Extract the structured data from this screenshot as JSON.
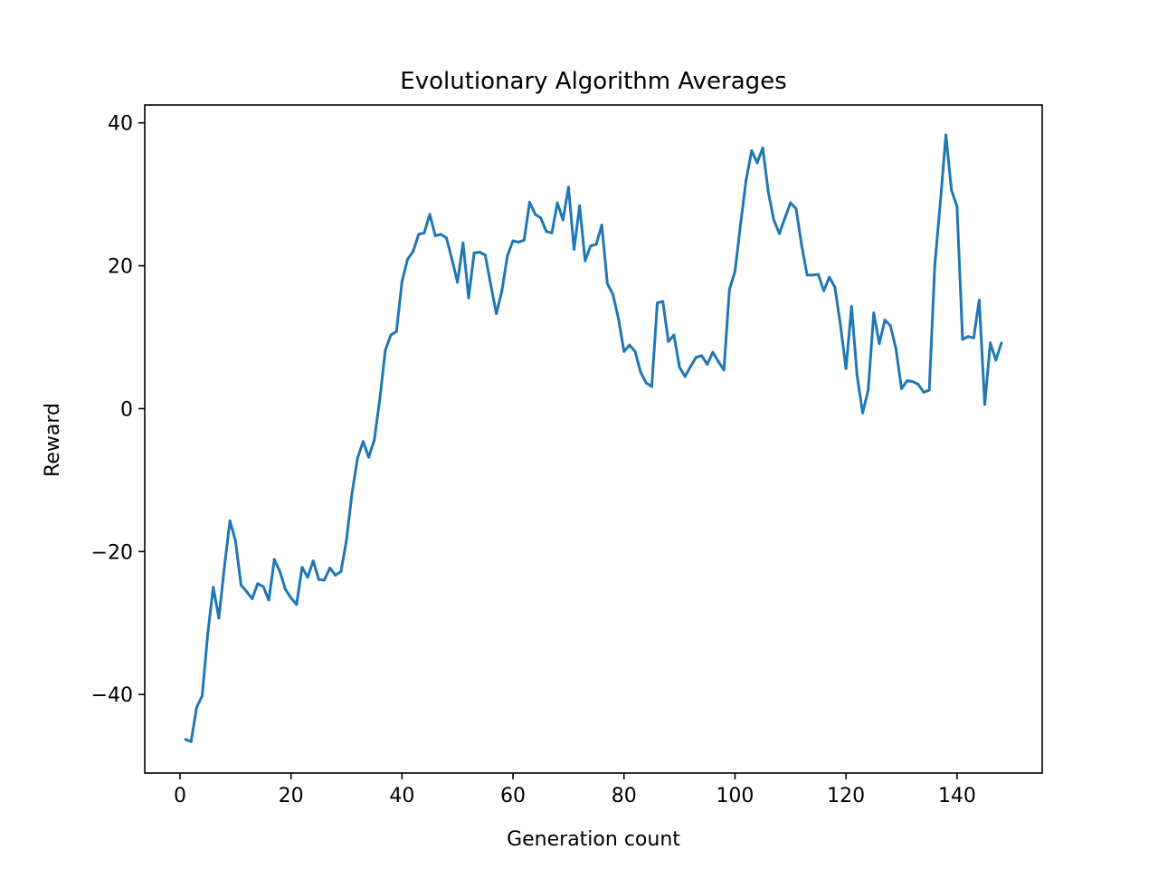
{
  "chart_data": {
    "type": "line",
    "title": "Evolutionary Algorithm Averages",
    "xlabel": "Generation count",
    "ylabel": "Reward",
    "xlim": [
      -6.35,
      155.35
    ],
    "ylim": [
      -51,
      42.5
    ],
    "xticks": [
      0,
      20,
      40,
      60,
      80,
      100,
      120,
      140
    ],
    "yticks": [
      -40,
      -20,
      0,
      20,
      40
    ],
    "xtick_labels": [
      "0",
      "20",
      "40",
      "60",
      "80",
      "100",
      "120",
      "140"
    ],
    "ytick_labels": [
      "−40",
      "−20",
      "0",
      "20",
      "40"
    ],
    "grid": false,
    "color": "#1f77b4",
    "series": [
      {
        "x": [
          1,
          2,
          3,
          4,
          5,
          6,
          7,
          8,
          9,
          10,
          11,
          12,
          13,
          14,
          15,
          16,
          17,
          18,
          19,
          20,
          21,
          22,
          23,
          24,
          25,
          26,
          27,
          28,
          29,
          30,
          31,
          32,
          33,
          34,
          35,
          36,
          37,
          38,
          39,
          40,
          41,
          42,
          43,
          44,
          45,
          46,
          47,
          48,
          49,
          50,
          51,
          52,
          53,
          54,
          55,
          56,
          57,
          58,
          59,
          60,
          61,
          62,
          63,
          64,
          65,
          66,
          67,
          68,
          69,
          70,
          71,
          72,
          73,
          74,
          75,
          76,
          77,
          78,
          79,
          80,
          81,
          82,
          83,
          84,
          85,
          86,
          87,
          88,
          89,
          90,
          91,
          92,
          93,
          94,
          95,
          96,
          97,
          98,
          99,
          100,
          101,
          102,
          103,
          104,
          105,
          106,
          107,
          108,
          109,
          110,
          111,
          112,
          113,
          114,
          115,
          116,
          117,
          118,
          119,
          120,
          121,
          122,
          123,
          124,
          125,
          126,
          127,
          128,
          129,
          130,
          131,
          132,
          133,
          134,
          135,
          136,
          137,
          138,
          139,
          140,
          141,
          142,
          143,
          144,
          145,
          146,
          147,
          148
        ],
        "values": [
          -46.3,
          -46.6,
          -41.8,
          -40.2,
          -31.5,
          -25.0,
          -29.3,
          -22.2,
          -15.7,
          -18.5,
          -24.7,
          -25.6,
          -26.6,
          -24.5,
          -24.9,
          -26.8,
          -21.1,
          -22.8,
          -25.3,
          -26.5,
          -27.4,
          -22.2,
          -23.6,
          -21.3,
          -23.9,
          -24.0,
          -22.3,
          -23.3,
          -22.8,
          -18.4,
          -11.8,
          -6.9,
          -4.6,
          -6.8,
          -4.4,
          1.3,
          8.2,
          10.3,
          10.8,
          17.8,
          20.9,
          22.0,
          24.4,
          24.6,
          27.2,
          24.2,
          24.4,
          23.9,
          20.9,
          17.7,
          23.2,
          15.5,
          21.8,
          21.9,
          21.5,
          17.3,
          13.3,
          16.5,
          21.4,
          23.5,
          23.3,
          23.6,
          28.9,
          27.2,
          26.7,
          24.8,
          24.6,
          28.8,
          26.4,
          31.0,
          22.3,
          28.4,
          20.7,
          22.8,
          23.0,
          25.7,
          17.5,
          16.0,
          12.6,
          8.0,
          8.9,
          8.0,
          5.1,
          3.6,
          3.1,
          14.8,
          15.0,
          9.4,
          10.3,
          5.8,
          4.5,
          5.9,
          7.2,
          7.4,
          6.2,
          7.9,
          6.6,
          5.4,
          16.7,
          19.2,
          25.8,
          32.0,
          36.1,
          34.4,
          36.5,
          30.3,
          26.4,
          24.5,
          26.7,
          28.8,
          28.0,
          22.9,
          18.7,
          18.7,
          18.8,
          16.5,
          18.4,
          17.0,
          11.7,
          5.6,
          14.3,
          4.6,
          -0.6,
          2.6,
          13.4,
          9.1,
          12.4,
          11.6,
          8.4,
          2.8,
          3.9,
          3.8,
          3.4,
          2.3,
          2.6,
          20.1,
          28.9,
          38.3,
          30.6,
          28.3,
          9.7,
          10.1,
          9.9,
          15.2,
          0.6,
          9.2,
          6.8,
          9.2
        ]
      }
    ]
  }
}
